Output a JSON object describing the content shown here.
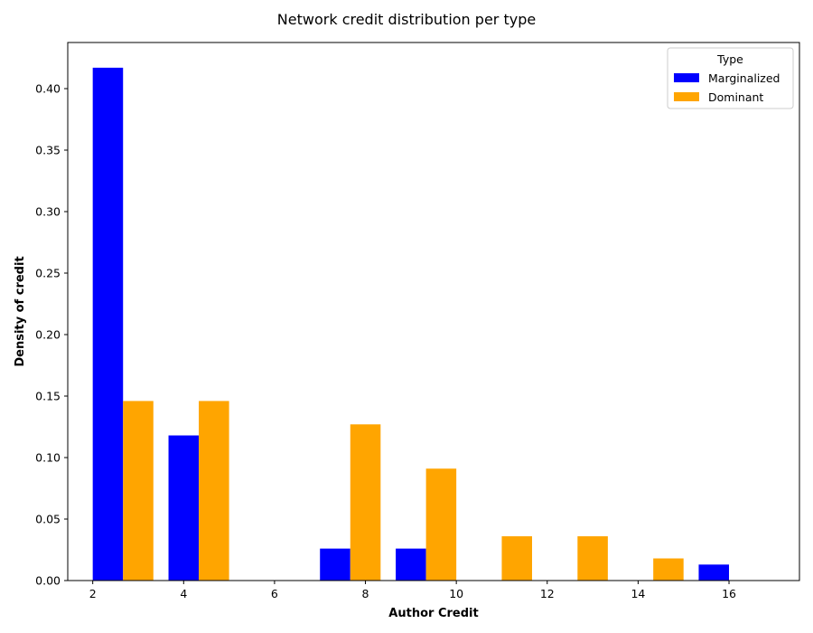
{
  "chart_data": {
    "type": "bar",
    "title": "Network credit distribution per type",
    "xlabel": "Author Credit",
    "ylabel": "Density of credit",
    "xlim": [
      1.45,
      17.55
    ],
    "ylim": [
      0,
      0.4375
    ],
    "xticks": [
      "2",
      "4",
      "6",
      "8",
      "10",
      "12",
      "14",
      "16"
    ],
    "yticks": [
      "0.00",
      "0.05",
      "0.10",
      "0.15",
      "0.20",
      "0.25",
      "0.30",
      "0.35",
      "0.40"
    ],
    "bin_edges": [
      2.0,
      3.667,
      5.333,
      7.0,
      8.667,
      10.333,
      12.0,
      13.667,
      15.333,
      17.0
    ],
    "series": [
      {
        "name": "Marginalized",
        "color": "#0000ff",
        "values": [
          0.417,
          0.118,
          0.0,
          0.026,
          0.026,
          0.0,
          0.0,
          0.0,
          0.013
        ]
      },
      {
        "name": "Dominant",
        "color": "#ffa500",
        "values": [
          0.146,
          0.146,
          0.0,
          0.127,
          0.091,
          0.036,
          0.036,
          0.018,
          0.0
        ]
      }
    ],
    "legend": {
      "title": "Type",
      "placement": "top-right"
    },
    "grid": false
  }
}
